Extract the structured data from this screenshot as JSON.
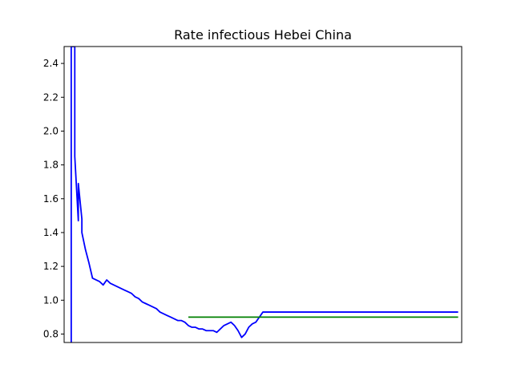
{
  "chart_data": {
    "type": "line",
    "title": "Rate infectious Hebei China",
    "xlabel": "",
    "ylabel": "",
    "ylim": [
      0.75,
      2.5
    ],
    "xlim": [
      -2,
      110
    ],
    "x_ticks_shown": false,
    "y_ticks": [
      "0.8",
      "1.0",
      "1.2",
      "1.4",
      "1.6",
      "1.8",
      "2.0",
      "2.2",
      "2.4"
    ],
    "y_tick_values": [
      0.8,
      1.0,
      1.2,
      1.4,
      1.6,
      1.8,
      2.0,
      2.2,
      2.4
    ],
    "grid": false,
    "series": [
      {
        "color": "#0000ff",
        "x": [
          0,
          0,
          1,
          1,
          2,
          2,
          3,
          3,
          4,
          5,
          6,
          7,
          8,
          9,
          10,
          11,
          12,
          13,
          14,
          15,
          16,
          17,
          18,
          19,
          20,
          21,
          22,
          23,
          24,
          25,
          26,
          27,
          28,
          29,
          30,
          31,
          32,
          33,
          34,
          35,
          36,
          37,
          38,
          39,
          40,
          41,
          42,
          43,
          44,
          45,
          46,
          47,
          48,
          49,
          50,
          51,
          52,
          53,
          54,
          55,
          56,
          57,
          58,
          59,
          60,
          61,
          62,
          63,
          64,
          65,
          66,
          67,
          68,
          69,
          70,
          71,
          72,
          73,
          74,
          75,
          76,
          77,
          78,
          79,
          80,
          81,
          82,
          83,
          84,
          85,
          86,
          87,
          88,
          89,
          90,
          91,
          92,
          93,
          94,
          95,
          96,
          97,
          98,
          99,
          100,
          101,
          102,
          103,
          104,
          105,
          106,
          107,
          108,
          109
        ],
        "values": [
          0.75,
          2.5,
          2.5,
          1.85,
          1.47,
          1.69,
          1.48,
          1.4,
          1.3,
          1.22,
          1.13,
          1.12,
          1.11,
          1.09,
          1.12,
          1.1,
          1.09,
          1.08,
          1.07,
          1.06,
          1.05,
          1.04,
          1.02,
          1.01,
          0.99,
          0.98,
          0.97,
          0.96,
          0.95,
          0.93,
          0.92,
          0.91,
          0.9,
          0.89,
          0.88,
          0.88,
          0.87,
          0.85,
          0.84,
          0.84,
          0.83,
          0.83,
          0.82,
          0.82,
          0.82,
          0.81,
          0.83,
          0.85,
          0.86,
          0.87,
          0.85,
          0.82,
          0.78,
          0.8,
          0.84,
          0.86,
          0.87,
          0.9,
          0.93,
          0.93,
          0.93,
          0.93,
          0.93,
          0.93,
          0.93,
          0.93,
          0.93,
          0.93,
          0.93,
          0.93,
          0.93,
          0.93,
          0.93,
          0.93,
          0.93,
          0.93,
          0.93,
          0.93,
          0.93,
          0.93,
          0.93,
          0.93,
          0.93,
          0.93,
          0.93,
          0.93,
          0.93,
          0.93,
          0.93,
          0.93,
          0.93,
          0.93,
          0.93,
          0.93,
          0.93,
          0.93,
          0.93,
          0.93,
          0.93,
          0.93,
          0.93,
          0.93,
          0.93,
          0.93,
          0.93,
          0.93,
          0.93,
          0.93,
          0.93,
          0.93,
          0.93,
          0.93,
          0.93,
          0.93
        ]
      },
      {
        "color": "#008000",
        "x": [
          33,
          109
        ],
        "values": [
          0.9,
          0.9
        ]
      }
    ]
  }
}
